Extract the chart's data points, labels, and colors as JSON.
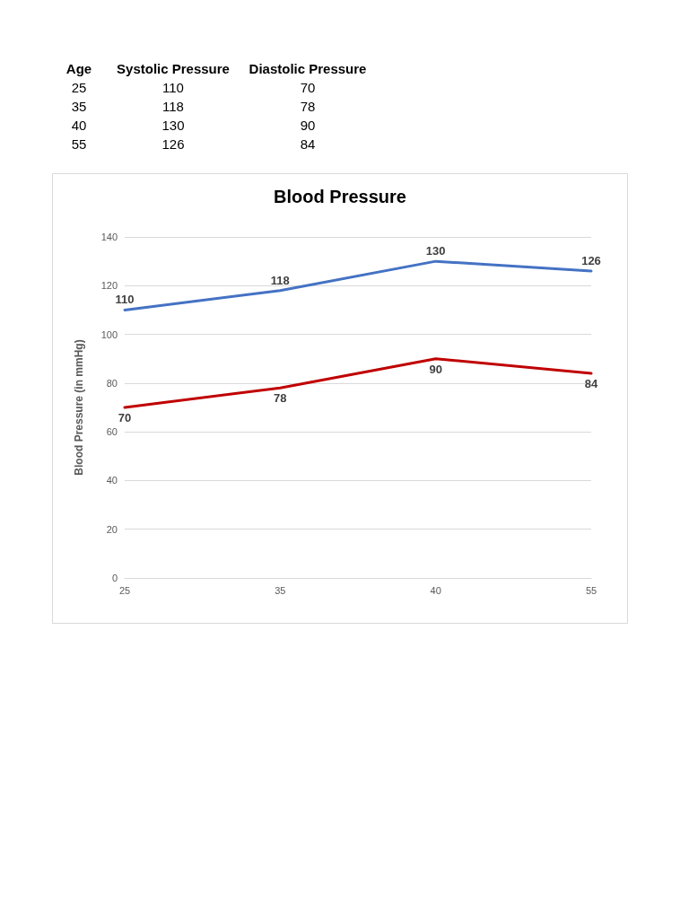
{
  "chart_data": [
    {
      "type": "other",
      "annotations": [
        "Age",
        "Systolic Pressure",
        "Diastolic Pressure",
        "25",
        "110",
        "70",
        "35",
        "118",
        "78",
        "40",
        "130",
        "90",
        "55",
        "126",
        "84"
      ]
    },
    {
      "type": "line",
      "title": "Blood Pressure",
      "ylabel": "Blood Pressure (in mmHg)",
      "categories": [
        "25",
        "35",
        "40",
        "55"
      ],
      "series": [
        {
          "color": "#4472c4",
          "values": [
            110,
            118,
            130,
            126
          ]
        },
        {
          "color": "#c00000",
          "values": [
            70,
            78,
            90,
            84
          ]
        }
      ],
      "ylim": [
        0,
        140
      ],
      "yticks": [
        0,
        20,
        40,
        60,
        80,
        100,
        120,
        140
      ],
      "grid": "y",
      "data_labels": true,
      "marker": "none",
      "line_style": "solid"
    }
  ]
}
